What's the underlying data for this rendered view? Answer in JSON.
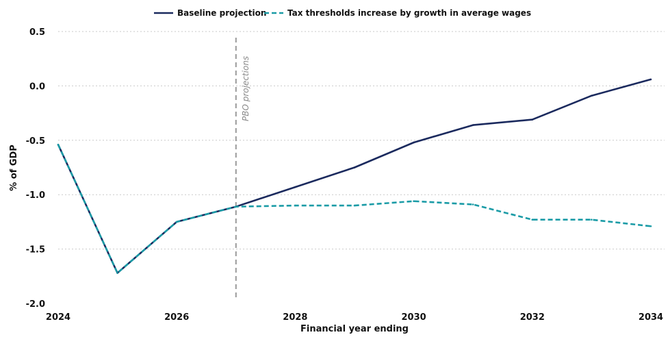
{
  "chart_data": {
    "type": "line",
    "xlabel": "Financial year ending",
    "ylabel": "% of GDP",
    "xlim": [
      2024,
      2034
    ],
    "ylim": [
      -2.0,
      0.5
    ],
    "x_ticks": [
      "2024",
      "2026",
      "2028",
      "2030",
      "2032",
      "2034"
    ],
    "y_ticks": [
      "0.5",
      "0.0",
      "-0.5",
      "-1.0",
      "-1.5",
      "-2.0"
    ],
    "grid": "horizontal dotted",
    "legend_position": "top",
    "x": [
      2024,
      2025,
      2026,
      2027,
      2028,
      2029,
      2030,
      2031,
      2032,
      2033,
      2034
    ],
    "series": [
      {
        "name": "Baseline projection",
        "color": "#1b2a5e",
        "style": "solid",
        "values": [
          -0.54,
          -1.72,
          -1.25,
          -1.11,
          -0.93,
          -0.75,
          -0.52,
          -0.36,
          -0.31,
          -0.09,
          0.06
        ]
      },
      {
        "name": "Tax thresholds increase by growth in average wages",
        "color": "#1a9ba6",
        "style": "dashed",
        "values": [
          -0.54,
          -1.72,
          -1.25,
          -1.11,
          -1.1,
          -1.1,
          -1.06,
          -1.09,
          -1.23,
          -1.23,
          -1.29
        ]
      }
    ],
    "annotations": [
      {
        "text": "PBO projections",
        "x": 2027,
        "style": "vertical dashed line"
      }
    ]
  }
}
